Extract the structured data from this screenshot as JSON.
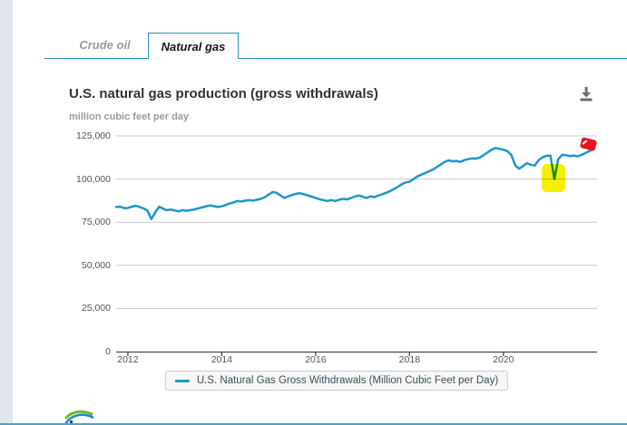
{
  "tabs": [
    {
      "label": "Crude oil",
      "active": false
    },
    {
      "label": "Natural gas",
      "active": true
    }
  ],
  "header": {
    "title": "U.S. natural gas production (gross withdrawals)",
    "subtitle": "million cubic feet per day",
    "download_icon": "download-icon"
  },
  "legend": {
    "label": "U.S. Natural Gas Gross Withdrawals (Million Cubic Feet per Day)"
  },
  "annotations": {
    "highlight_marker": {
      "shape": "highlighter-rectangle",
      "color": "#f7ee00"
    },
    "end_marker": {
      "shape": "marker-scribble",
      "color": "#e8131d"
    }
  },
  "colors": {
    "accent": "#2596b8",
    "series": "#1e96c8",
    "gridline": "#c8c8c8",
    "axis": "#4a4a4a"
  },
  "chart_data": {
    "type": "line",
    "title": "U.S. natural gas production (gross withdrawals)",
    "ylabel": "million cubic feet per day",
    "xlabel": "",
    "grid": true,
    "legend_position": "bottom",
    "x_start": "2011-10",
    "frequency": "monthly",
    "ylim": [
      0,
      125000
    ],
    "y_ticks": [
      0,
      25000,
      50000,
      75000,
      100000,
      125000
    ],
    "x_tick_years": [
      2012,
      2014,
      2016,
      2018,
      2020
    ],
    "series": [
      {
        "name": "U.S. Natural Gas Gross Withdrawals (Million Cubic Feet per Day)",
        "color": "#1e96c8",
        "values": [
          83800,
          84000,
          83200,
          83200,
          84000,
          84500,
          83800,
          83000,
          81800,
          76800,
          80800,
          84000,
          82800,
          82000,
          82300,
          81800,
          81300,
          82000,
          81600,
          82000,
          82400,
          83000,
          83600,
          84200,
          84700,
          84300,
          83800,
          84200,
          85000,
          85800,
          86500,
          87300,
          87000,
          87500,
          87800,
          87500,
          88000,
          88500,
          89500,
          91000,
          92500,
          92000,
          90500,
          89100,
          90000,
          90800,
          91500,
          91800,
          91200,
          90500,
          89800,
          89000,
          88300,
          87800,
          87300,
          87800,
          87300,
          88000,
          88500,
          88200,
          89000,
          89800,
          90500,
          89800,
          89000,
          90000,
          89500,
          90500,
          91200,
          92000,
          93000,
          94200,
          95500,
          97000,
          98000,
          98500,
          100000,
          101500,
          102500,
          103500,
          104500,
          105500,
          107000,
          108500,
          110000,
          110800,
          110300,
          110500,
          110000,
          111000,
          111500,
          112000,
          111800,
          112500,
          114000,
          115500,
          117000,
          118000,
          117500,
          117000,
          116200,
          114000,
          108000,
          106000,
          107500,
          109200,
          108300,
          107800,
          111000,
          112700,
          113500,
          113600,
          100000,
          111500,
          114000,
          113800,
          113300,
          113600,
          113200,
          114000,
          115200,
          116300,
          117200
        ]
      }
    ]
  }
}
